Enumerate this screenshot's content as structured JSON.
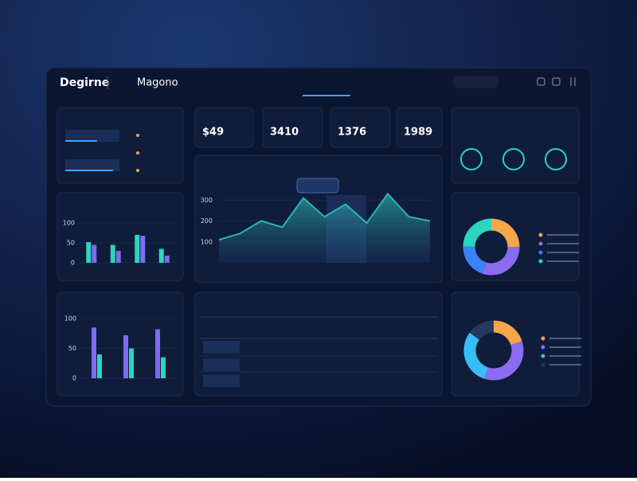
{
  "header": {
    "brand": "Degirne",
    "subtitle": "Magono"
  },
  "kpis": [
    "$49",
    "3410",
    "1376",
    "1989"
  ],
  "bars_top": {
    "type": "bar",
    "ylim": [
      0,
      100
    ],
    "yticks": [
      0,
      50,
      100
    ],
    "series": [
      {
        "color": "#2dd4bf",
        "values": [
          52,
          45,
          70,
          35
        ]
      },
      {
        "color": "#7c6cf0",
        "values": [
          45,
          30,
          68,
          18
        ]
      }
    ]
  },
  "bars_bottom": {
    "type": "bar",
    "ylim": [
      0,
      100
    ],
    "yticks": [
      0,
      50,
      100
    ],
    "series": [
      {
        "color": "#7c6cf0",
        "values": [
          85,
          72,
          82
        ]
      },
      {
        "color": "#2dd4bf",
        "values": [
          40,
          50,
          35
        ]
      }
    ]
  },
  "area": {
    "type": "area",
    "ylim": [
      0,
      400
    ],
    "yticks": [
      100,
      200,
      300
    ],
    "color": "#2bb5b0",
    "values": [
      110,
      140,
      200,
      170,
      310,
      220,
      280,
      190,
      330,
      220,
      200
    ]
  },
  "donut_top": {
    "type": "pie",
    "values": [
      25,
      30,
      20,
      25
    ],
    "colors": [
      "#f5a54a",
      "#8b6cf0",
      "#3b82f6",
      "#2dd4bf"
    ]
  },
  "donut_bottom": {
    "type": "pie",
    "values": [
      20,
      35,
      30,
      15
    ],
    "colors": [
      "#f5a54a",
      "#8b6cf0",
      "#38bdf8",
      "#26385e"
    ]
  }
}
